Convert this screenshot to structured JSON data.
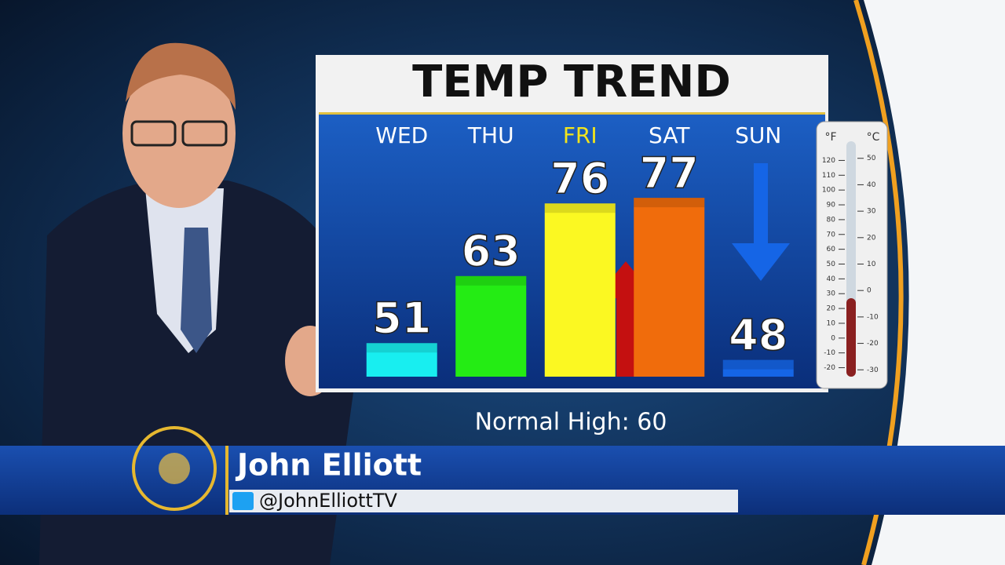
{
  "chart_data": {
    "type": "bar",
    "title": "TEMP TREND",
    "categories": [
      "WED",
      "THU",
      "FRI",
      "SAT",
      "SUN"
    ],
    "category_colors": [
      "#ffffff",
      "#ffffff",
      "#f2e41c",
      "#ffffff",
      "#ffffff"
    ],
    "values": [
      51,
      63,
      76,
      77,
      48
    ],
    "colors": [
      "#18eef0",
      "#24ec14",
      "#fbf822",
      "#f06c0c",
      "#1565e6"
    ],
    "ylim": [
      45,
      78
    ],
    "note": "Normal High: 60"
  },
  "lower_third": {
    "name": "John Elliott",
    "handle": "@JohnElliottTV"
  },
  "thermometer": {
    "f_label": "°F",
    "c_label": "°C",
    "f_ticks": [
      120,
      110,
      100,
      90,
      80,
      70,
      60,
      50,
      40,
      30,
      20,
      10,
      0,
      -10,
      -20
    ],
    "c_ticks": [
      50,
      40,
      30,
      20,
      10,
      0,
      -10,
      -20,
      -30
    ],
    "f_range": [
      -25,
      125
    ],
    "c_range": [
      -32,
      52
    ]
  }
}
